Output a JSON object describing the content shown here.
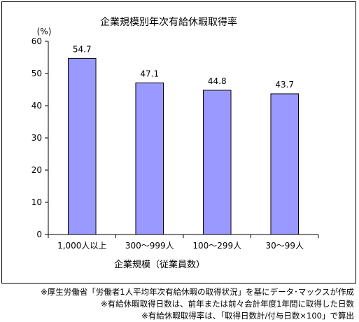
{
  "chart_data": {
    "type": "bar",
    "title": "企業規模別年次有給休暇取得率",
    "ylabel": "(%)",
    "xlabel": "企業規模（従業員数）",
    "categories": [
      "1,000人以上",
      "300〜999人",
      "100〜299人",
      "30〜99人"
    ],
    "values": [
      54.7,
      47.1,
      44.8,
      43.7
    ],
    "data_labels": [
      "54.7",
      "47.1",
      "44.8",
      "43.7"
    ],
    "yticks": [
      "0",
      "10",
      "20",
      "30",
      "40",
      "50",
      "60"
    ],
    "ylim": [
      0,
      60
    ],
    "grid": false,
    "colors": {
      "bar": "#9999ff",
      "bar_border": "#000000"
    }
  },
  "notes": [
    "※厚生労働省「労働者1人平均年次有給休暇の取得状況」を基にデータ･マックスが作成",
    "※有給休暇取得日数は、前年または前々会計年度1年間に取得した日数",
    "※有給休暇取得率は、「取得日数計/付与日数×100」で算出"
  ]
}
